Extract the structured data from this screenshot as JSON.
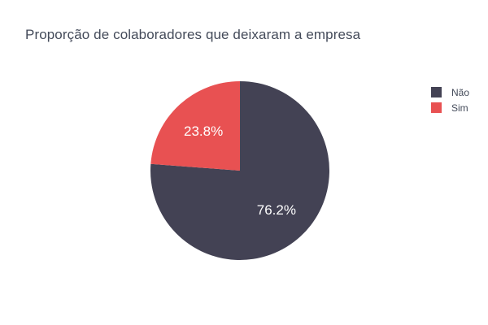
{
  "chart_data": {
    "type": "pie",
    "title": "Proporção de colaboradores que deixaram a empresa",
    "labels": [
      "Não",
      "Sim"
    ],
    "values": [
      76.2,
      23.8
    ],
    "value_labels": [
      "76.2%",
      "23.8%"
    ],
    "colors": [
      "#434254",
      "#e85152"
    ],
    "legend_position": "top-right",
    "text_color": "#444b5a",
    "label_text_color": "#ffffff"
  }
}
